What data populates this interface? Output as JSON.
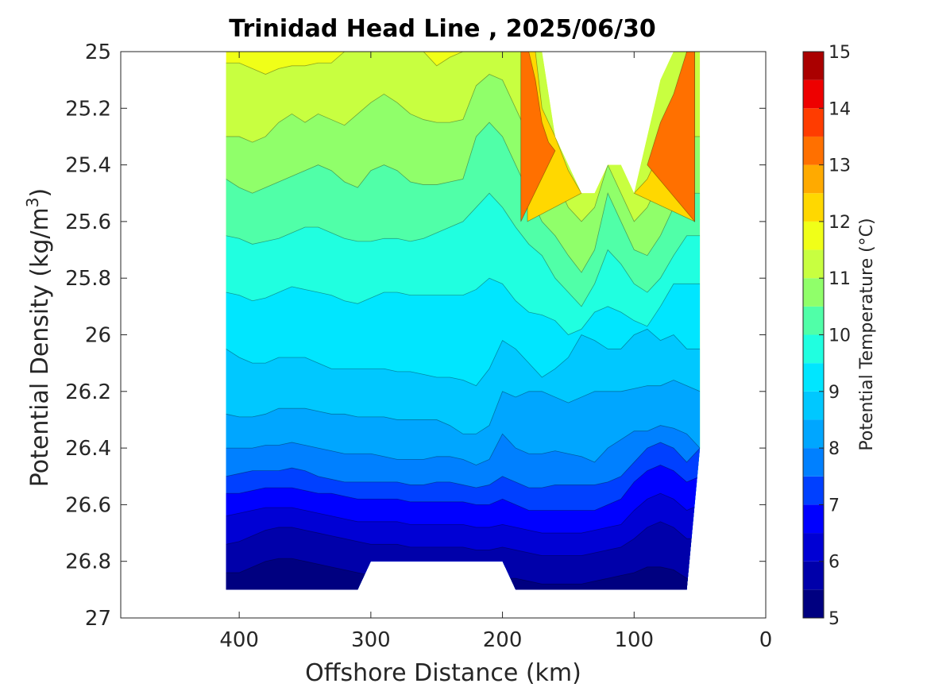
{
  "chart_data": {
    "type": "heatmap",
    "title": "Trinidad Head Line , 2025/06/30",
    "xlabel": "Offshore Distance (km)",
    "ylabel_main": "Potential Density (kg/m",
    "ylabel_sup": "3",
    "ylabel_close": ")",
    "xlim": [
      490,
      0
    ],
    "ylim": [
      27,
      25
    ],
    "x_reversed": true,
    "y_reversed": true,
    "x_ticks": [
      400,
      300,
      200,
      100,
      0
    ],
    "x_tick_labels": [
      "400",
      "300",
      "200",
      "100",
      "0"
    ],
    "y_ticks": [
      25,
      25.2,
      25.4,
      25.6,
      25.8,
      26,
      26.2,
      26.4,
      26.6,
      26.8,
      27
    ],
    "y_tick_labels": [
      "25",
      "25.2",
      "25.4",
      "25.6",
      "25.8",
      "26",
      "26.2",
      "26.4",
      "26.6",
      "26.8",
      "27"
    ],
    "colorbar": {
      "label": "Potential Temperature (°C)",
      "min": 5,
      "max": 15,
      "step": 0.5,
      "tick_values": [
        5,
        6,
        7,
        8,
        9,
        10,
        11,
        12,
        13,
        14,
        15
      ],
      "tick_labels": [
        "5",
        "6",
        "7",
        "8",
        "9",
        "10",
        "11",
        "12",
        "13",
        "14",
        "15"
      ],
      "colors": [
        "#000080",
        "#0000AA",
        "#0000D4",
        "#0000FF",
        "#0040FF",
        "#0080FF",
        "#00A6FF",
        "#00C8FF",
        "#00E6FF",
        "#20FFE0",
        "#50FFA8",
        "#90FF6A",
        "#C8FF40",
        "#F0FF18",
        "#FFD800",
        "#FFAA00",
        "#FF7000",
        "#FF3C00",
        "#EE0000",
        "#AA0000"
      ]
    },
    "x": [
      410,
      400,
      390,
      380,
      370,
      360,
      350,
      340,
      330,
      320,
      310,
      300,
      290,
      280,
      270,
      260,
      250,
      240,
      230,
      220,
      210,
      200,
      190,
      180,
      170,
      160,
      150,
      140,
      130,
      120,
      110,
      100,
      90,
      80,
      70,
      60,
      50
    ],
    "deep_bound": [
      26.9,
      26.9,
      26.9,
      26.9,
      26.9,
      26.9,
      26.9,
      26.9,
      26.9,
      26.9,
      26.9,
      26.8,
      26.8,
      26.8,
      26.8,
      26.8,
      26.8,
      26.8,
      26.8,
      26.8,
      26.8,
      26.8,
      26.9,
      26.9,
      26.9,
      26.9,
      26.9,
      26.9,
      26.9,
      26.9,
      26.9,
      26.9,
      26.9,
      26.9,
      26.9,
      26.9,
      26.4
    ],
    "shallow_bound": [
      25,
      25,
      25,
      25,
      25,
      25,
      25,
      25,
      25,
      25,
      25,
      25,
      25,
      25,
      25,
      25,
      25,
      25,
      25,
      25,
      25,
      25,
      25,
      25,
      25,
      25.3,
      25.4,
      25.5,
      25.5,
      25.4,
      25.4,
      25.5,
      25.3,
      25.1,
      25,
      25,
      25
    ],
    "isotherms": [
      {
        "temp": 11.5,
        "depth": [
          25.04,
          25.04,
          25.06,
          25.08,
          25.06,
          25.05,
          25.05,
          25.04,
          25.04,
          25.0,
          25.0,
          25.0,
          25.0,
          25.0,
          25.0,
          25.0,
          25.05,
          25.02,
          25.0,
          25.0,
          25.0,
          25.0,
          25.0,
          25.0,
          25.0,
          25.0,
          25.0,
          25.0,
          25.0,
          25.0,
          25.0,
          25.0,
          25.0,
          25.0,
          25.0,
          25.0,
          25.0
        ]
      },
      {
        "temp": 11.0,
        "depth": [
          25.3,
          25.3,
          25.32,
          25.3,
          25.25,
          25.22,
          25.25,
          25.22,
          25.24,
          25.26,
          25.22,
          25.18,
          25.15,
          25.18,
          25.22,
          25.24,
          25.25,
          25.25,
          25.24,
          25.12,
          25.08,
          25.1,
          25.2,
          25.3,
          25.35,
          25.45,
          25.55,
          25.6,
          25.55,
          25.4,
          25.5,
          25.6,
          25.55,
          25.45,
          25.35,
          25.3,
          25.3
        ]
      },
      {
        "temp": 10.5,
        "depth": [
          25.45,
          25.48,
          25.5,
          25.48,
          25.46,
          25.44,
          25.42,
          25.4,
          25.42,
          25.46,
          25.48,
          25.42,
          25.4,
          25.42,
          25.46,
          25.47,
          25.47,
          25.46,
          25.45,
          25.3,
          25.25,
          25.3,
          25.4,
          25.5,
          25.6,
          25.65,
          25.72,
          25.78,
          25.7,
          25.5,
          25.6,
          25.7,
          25.72,
          25.65,
          25.55,
          25.5,
          25.5
        ]
      },
      {
        "temp": 10.0,
        "depth": [
          25.65,
          25.66,
          25.68,
          25.67,
          25.66,
          25.64,
          25.62,
          25.62,
          25.64,
          25.66,
          25.67,
          25.67,
          25.66,
          25.66,
          25.67,
          25.66,
          25.64,
          25.62,
          25.6,
          25.55,
          25.5,
          25.55,
          25.62,
          25.68,
          25.72,
          25.8,
          25.85,
          25.9,
          25.82,
          25.7,
          25.75,
          25.82,
          25.85,
          25.8,
          25.72,
          25.65,
          25.65
        ]
      },
      {
        "temp": 9.5,
        "depth": [
          25.85,
          25.86,
          25.88,
          25.87,
          25.85,
          25.83,
          25.84,
          25.85,
          25.86,
          25.88,
          25.89,
          25.87,
          25.85,
          25.85,
          25.86,
          25.86,
          25.86,
          25.86,
          25.86,
          25.84,
          25.8,
          25.82,
          25.88,
          25.92,
          25.93,
          25.95,
          26.0,
          25.98,
          25.92,
          25.9,
          25.92,
          25.95,
          25.97,
          25.9,
          25.82,
          25.82,
          25.82
        ]
      },
      {
        "temp": 9.0,
        "depth": [
          26.05,
          26.08,
          26.1,
          26.1,
          26.08,
          26.08,
          26.08,
          26.1,
          26.12,
          26.12,
          26.12,
          26.12,
          26.12,
          26.13,
          26.13,
          26.14,
          26.15,
          26.15,
          26.16,
          26.18,
          26.12,
          26.02,
          26.05,
          26.1,
          26.15,
          26.12,
          26.08,
          26.0,
          26.02,
          26.05,
          26.05,
          26.0,
          25.98,
          26.02,
          26.0,
          26.05,
          26.05
        ]
      },
      {
        "temp": 8.5,
        "depth": [
          26.28,
          26.29,
          26.29,
          26.28,
          26.26,
          26.26,
          26.26,
          26.27,
          26.28,
          26.28,
          26.29,
          26.29,
          26.29,
          26.3,
          26.3,
          26.3,
          26.3,
          26.32,
          26.35,
          26.35,
          26.32,
          26.2,
          26.22,
          26.2,
          26.2,
          26.22,
          26.24,
          26.22,
          26.2,
          26.2,
          26.2,
          26.19,
          26.18,
          26.18,
          26.16,
          26.18,
          26.2
        ]
      },
      {
        "temp": 8.0,
        "depth": [
          26.4,
          26.4,
          26.4,
          26.39,
          26.39,
          26.38,
          26.39,
          26.4,
          26.41,
          26.42,
          26.42,
          26.42,
          26.43,
          26.44,
          26.44,
          26.44,
          26.43,
          26.43,
          26.44,
          26.46,
          26.44,
          26.35,
          26.4,
          26.42,
          26.42,
          26.41,
          26.42,
          26.43,
          26.45,
          26.4,
          26.37,
          26.34,
          26.34,
          26.32,
          26.33,
          26.35,
          26.4
        ]
      },
      {
        "temp": 7.5,
        "depth": [
          26.5,
          26.49,
          26.48,
          26.48,
          26.48,
          26.47,
          26.48,
          26.5,
          26.51,
          26.52,
          26.52,
          26.52,
          26.52,
          26.52,
          26.53,
          26.53,
          26.52,
          26.52,
          26.53,
          26.54,
          26.53,
          26.5,
          26.52,
          26.54,
          26.54,
          26.53,
          26.53,
          26.53,
          26.53,
          26.52,
          26.5,
          26.45,
          26.4,
          26.38,
          26.4,
          26.45,
          26.4
        ]
      },
      {
        "temp": 7.0,
        "depth": [
          26.56,
          26.56,
          26.55,
          26.54,
          26.54,
          26.54,
          26.55,
          26.56,
          26.56,
          26.57,
          26.58,
          26.58,
          26.58,
          26.58,
          26.59,
          26.59,
          26.59,
          26.59,
          26.59,
          26.6,
          26.6,
          26.58,
          26.6,
          26.62,
          26.62,
          26.62,
          26.62,
          26.62,
          26.62,
          26.6,
          26.58,
          26.52,
          26.48,
          26.46,
          26.48,
          26.52,
          26.5
        ]
      },
      {
        "temp": 6.5,
        "depth": [
          26.64,
          26.63,
          26.62,
          26.61,
          26.61,
          26.61,
          26.62,
          26.63,
          26.64,
          26.65,
          26.66,
          26.66,
          26.66,
          26.66,
          26.67,
          26.67,
          26.67,
          26.67,
          26.67,
          26.68,
          26.68,
          26.67,
          26.68,
          26.69,
          26.7,
          26.7,
          26.7,
          26.7,
          26.69,
          26.68,
          26.67,
          26.62,
          26.58,
          26.56,
          26.58,
          26.62,
          26.6
        ]
      },
      {
        "temp": 6.0,
        "depth": [
          26.74,
          26.73,
          26.71,
          26.69,
          26.68,
          26.68,
          26.69,
          26.7,
          26.71,
          26.72,
          26.73,
          26.74,
          26.74,
          26.74,
          26.75,
          26.75,
          26.75,
          26.75,
          26.75,
          26.76,
          26.76,
          26.75,
          26.76,
          26.77,
          26.78,
          26.78,
          26.78,
          26.78,
          26.77,
          26.76,
          26.75,
          26.72,
          26.68,
          26.66,
          26.68,
          26.72,
          26.72
        ]
      },
      {
        "temp": 5.5,
        "depth": [
          26.84,
          26.84,
          26.82,
          26.8,
          26.79,
          26.79,
          26.8,
          26.81,
          26.82,
          26.83,
          26.84,
          26.85,
          26.85,
          26.85,
          26.85,
          26.85,
          26.85,
          26.85,
          26.85,
          26.86,
          26.86,
          26.86,
          26.86,
          26.87,
          26.88,
          26.88,
          26.88,
          26.88,
          26.87,
          26.86,
          26.85,
          26.84,
          26.82,
          26.82,
          26.83,
          26.86,
          26.86
        ]
      }
    ],
    "warm_isotherms": [
      {
        "temp": 12.0,
        "x": [
          175,
          170,
          160,
          150,
          140
        ],
        "depth": [
          25.0,
          25.2,
          25.3,
          25.42,
          25.5
        ]
      },
      {
        "temp": 13.0,
        "x": [
          180,
          175,
          170,
          165,
          160
        ],
        "depth": [
          25.0,
          25.1,
          25.25,
          25.32,
          25.35
        ]
      },
      {
        "temp": 12.0,
        "x": [
          60,
          70,
          80,
          90,
          100
        ],
        "depth": [
          25.0,
          25.25,
          25.35,
          25.45,
          25.5
        ]
      },
      {
        "temp": 13.0,
        "x": [
          60,
          70,
          80,
          90
        ],
        "depth": [
          25.0,
          25.15,
          25.25,
          25.4
        ]
      }
    ]
  }
}
